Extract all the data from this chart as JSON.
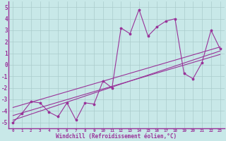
{
  "xlabel": "Windchill (Refroidissement éolien,°C)",
  "background_color": "#c8e8e8",
  "line_color": "#993399",
  "grid_color": "#aacccc",
  "xlim": [
    -0.5,
    23.5
  ],
  "ylim": [
    -5.5,
    5.5
  ],
  "xticks": [
    0,
    1,
    2,
    3,
    4,
    5,
    6,
    7,
    8,
    9,
    10,
    11,
    12,
    13,
    14,
    15,
    16,
    17,
    18,
    19,
    20,
    21,
    22,
    23
  ],
  "yticks": [
    -5,
    -4,
    -3,
    -2,
    -1,
    0,
    1,
    2,
    3,
    4,
    5
  ],
  "scatter_x": [
    0,
    1,
    2,
    3,
    4,
    5,
    6,
    7,
    8,
    9,
    10,
    11,
    12,
    13,
    14,
    15,
    16,
    17,
    18,
    19,
    20,
    21,
    22,
    23
  ],
  "scatter_y": [
    -5.0,
    -4.2,
    -3.2,
    -3.3,
    -4.1,
    -4.5,
    -3.3,
    -4.8,
    -3.3,
    -3.4,
    -1.4,
    -2.0,
    3.2,
    2.7,
    4.8,
    2.5,
    3.3,
    3.8,
    4.0,
    -0.75,
    -1.2,
    0.2,
    3.0,
    1.4
  ],
  "line1_x": [
    0,
    23
  ],
  "line1_y": [
    -4.8,
    1.2
  ],
  "line2_x": [
    0,
    23
  ],
  "line2_y": [
    -4.4,
    0.9
  ],
  "line3_x": [
    0,
    23
  ],
  "line3_y": [
    -3.7,
    1.55
  ]
}
